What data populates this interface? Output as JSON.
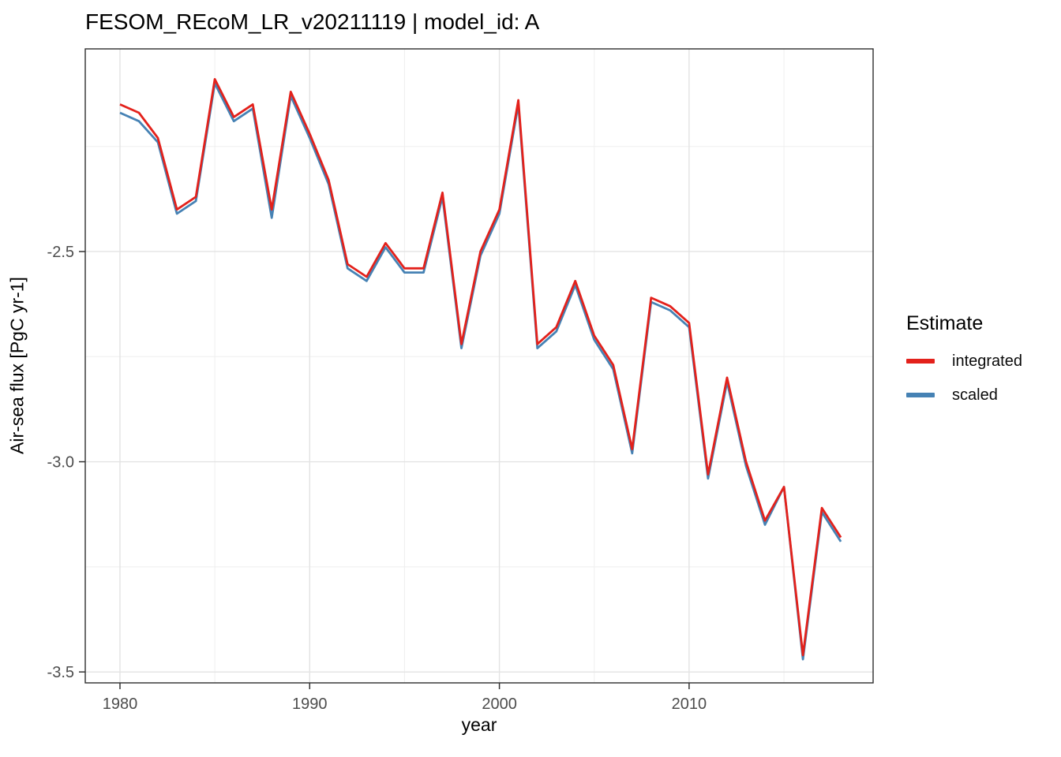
{
  "chart_data": {
    "type": "line",
    "title": "FESOM_REcoM_LR_v20211119 | model_id: A",
    "xlabel": "year",
    "ylabel": "Air-sea flux [PgC yr-1]",
    "legend": {
      "title": "Estimate",
      "position": "right"
    },
    "grid": true,
    "x": [
      1980,
      1981,
      1982,
      1983,
      1984,
      1985,
      1986,
      1987,
      1988,
      1989,
      1990,
      1991,
      1992,
      1993,
      1994,
      1995,
      1996,
      1997,
      1998,
      1999,
      2000,
      2001,
      2002,
      2003,
      2004,
      2005,
      2006,
      2007,
      2008,
      2009,
      2010,
      2011,
      2012,
      2013,
      2014,
      2015,
      2016,
      2017,
      2018
    ],
    "series": [
      {
        "name": "integrated",
        "color": "#E3211B",
        "values": [
          -2.15,
          -2.17,
          -2.23,
          -2.4,
          -2.37,
          -2.09,
          -2.18,
          -2.15,
          -2.4,
          -2.12,
          -2.22,
          -2.33,
          -2.53,
          -2.56,
          -2.48,
          -2.54,
          -2.54,
          -2.36,
          -2.72,
          -2.5,
          -2.4,
          -2.14,
          -2.72,
          -2.68,
          -2.57,
          -2.7,
          -2.77,
          -2.97,
          -2.61,
          -2.63,
          -2.67,
          -3.03,
          -2.8,
          -3.0,
          -3.14,
          -3.06,
          -3.46,
          -3.11,
          -3.18
        ]
      },
      {
        "name": "scaled",
        "color": "#4682B4",
        "values": [
          -2.17,
          -2.19,
          -2.24,
          -2.41,
          -2.38,
          -2.1,
          -2.19,
          -2.16,
          -2.42,
          -2.13,
          -2.23,
          -2.34,
          -2.54,
          -2.57,
          -2.49,
          -2.55,
          -2.55,
          -2.37,
          -2.73,
          -2.51,
          -2.41,
          -2.15,
          -2.73,
          -2.69,
          -2.58,
          -2.71,
          -2.78,
          -2.98,
          -2.62,
          -2.64,
          -2.68,
          -3.04,
          -2.81,
          -3.01,
          -3.15,
          -3.06,
          -3.47,
          -3.12,
          -3.19
        ]
      }
    ],
    "xlim": [
      1978.17,
      2019.7
    ],
    "ylim": [
      -3.526,
      -2.018
    ],
    "x_ticks": {
      "major": [
        1980,
        1990,
        2000,
        2010
      ],
      "minor": [
        1985,
        1995,
        2005,
        2015
      ],
      "labels": [
        "1980",
        "1990",
        "2000",
        "2010"
      ]
    },
    "y_ticks": {
      "major": [
        -2.5,
        -3.0,
        -3.5
      ],
      "minor": [
        -2.25,
        -2.75,
        -3.25
      ],
      "labels": [
        "-2.5",
        "-3.0",
        "-3.5"
      ]
    }
  }
}
